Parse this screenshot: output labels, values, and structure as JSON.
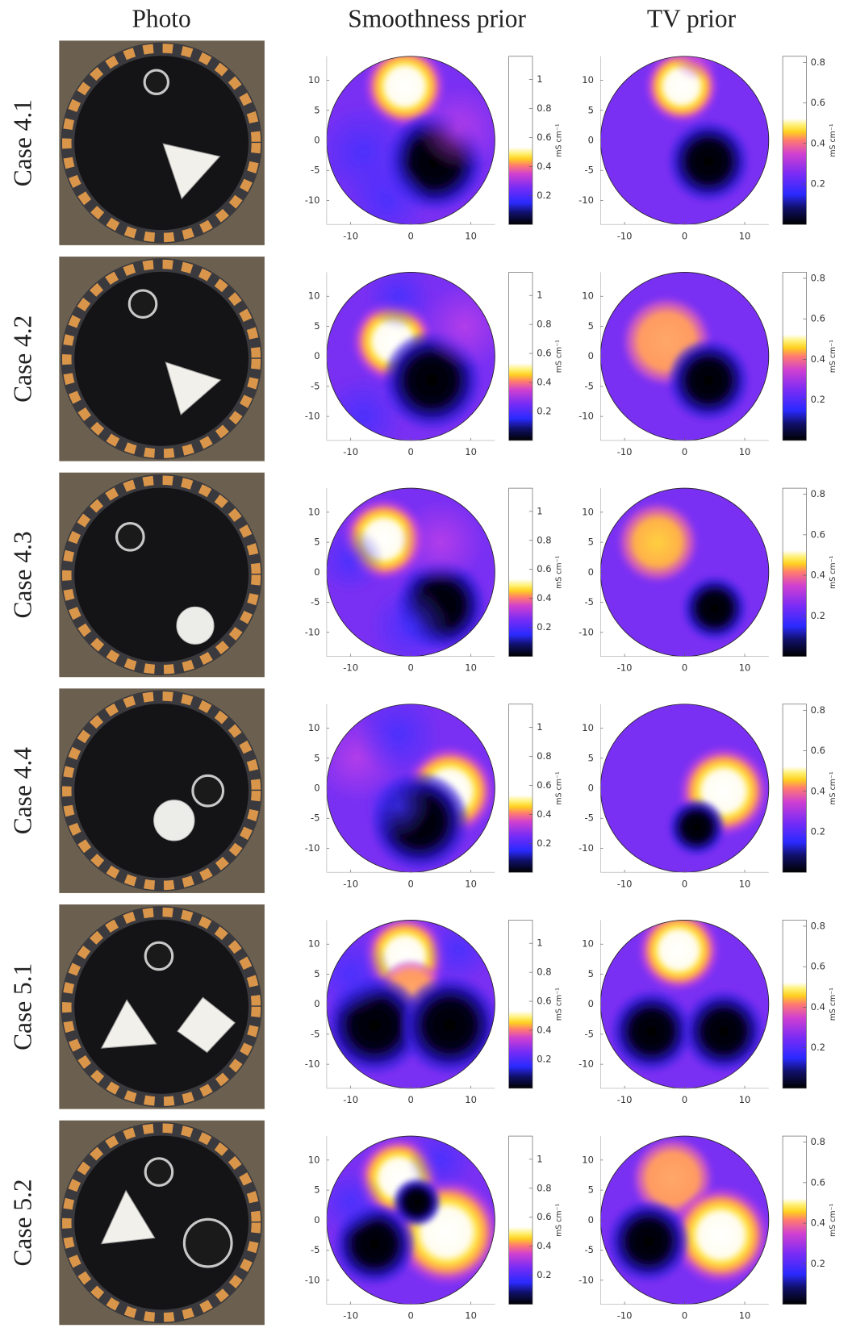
{
  "columns": [
    "Photo",
    "Smoothness prior",
    "TV prior"
  ],
  "rows": [
    "Case 4.1",
    "Case 4.2",
    "Case 4.3",
    "Case 4.4",
    "Case 5.1",
    "Case 5.2"
  ],
  "axes": {
    "xlim": [
      -14,
      14
    ],
    "ylim": [
      -14,
      14
    ],
    "xticks": [
      -10,
      0,
      10
    ],
    "yticks": [
      10,
      5,
      0,
      -5,
      -10
    ]
  },
  "colorbars": [
    {
      "clim": [
        0,
        1.16
      ],
      "ticks": [
        1,
        0.8,
        0.6,
        0.4,
        0.2
      ],
      "label": "mS cm⁻¹"
    },
    {
      "clim": [
        0,
        0.83
      ],
      "ticks": [
        0.8,
        0.6,
        0.4,
        0.2
      ],
      "label": "mS cm⁻¹"
    }
  ]
}
